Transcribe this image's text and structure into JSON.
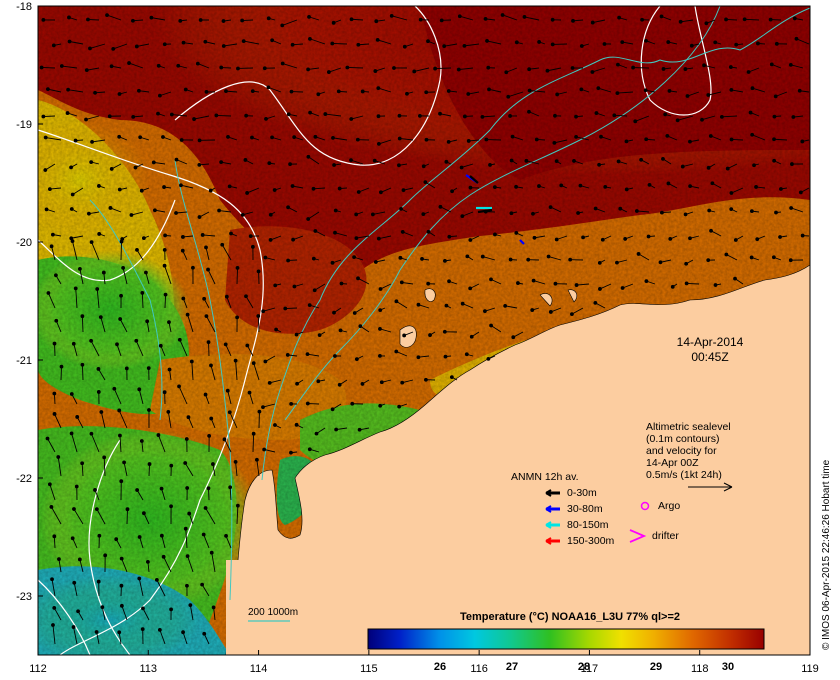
{
  "axes": {
    "x_ticks": [
      "112",
      "113",
      "114",
      "115",
      "116",
      "117",
      "118",
      "119"
    ],
    "y_ticks": [
      "-18",
      "-19",
      "-20",
      "-21",
      "-22",
      "-23"
    ]
  },
  "map_extent": {
    "lon": [
      112,
      119
    ],
    "lat": [
      -23.5,
      -18
    ]
  },
  "timestamp": {
    "date": "14-Apr-2014",
    "time": "00:45Z"
  },
  "altimetric_note": {
    "lines": [
      "Altimetric sealevel",
      "(0.1m contours)",
      "and velocity for",
      "14-Apr 00Z",
      "0.5m/s (1kt 24h)"
    ]
  },
  "anmn_legend": {
    "title": "ANMN 12h av.",
    "items": [
      {
        "label": "0-30m",
        "color": "#000000"
      },
      {
        "label": "30-80m",
        "color": "#0000ff"
      },
      {
        "label": "80-150m",
        "color": "#00e5e5"
      },
      {
        "label": "150-300m",
        "color": "#ff0000"
      }
    ]
  },
  "markers": {
    "argo_label": "Argo",
    "argo_color": "#ff00ff",
    "drifter_label": "drifter",
    "drifter_color": "#ff00ff"
  },
  "bathymetry_label": "200  1000m",
  "colorbar": {
    "title": "Temperature (°C) NOAA16_L3U 77% ql>=2",
    "ticks": [
      "26",
      "27",
      "28",
      "29",
      "30"
    ],
    "range": [
      25,
      30.5
    ]
  },
  "credit": "© IMOS 06-Apr-2015 22:46:26 Hobart time",
  "colors": {
    "land": "#fccda0",
    "warm": "#9e0000",
    "orange": "#e07800",
    "yellow": "#e8d800",
    "green": "#33c61a",
    "cyan": "#18b8c8",
    "contour": "#ffffff",
    "isobath": "#40c8c0"
  }
}
